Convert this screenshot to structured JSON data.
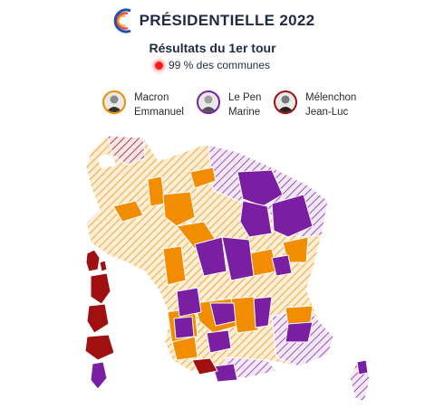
{
  "header": {
    "brand": "PRÉSIDENTIELLE",
    "year": "2022",
    "logo_icon": "tricolor-arc-logo"
  },
  "subtitle": "Résultats du 1er tour",
  "status": {
    "text": "99 % des communes",
    "indicator_color": "#ff1a1a"
  },
  "legend": [
    {
      "first": "Macron",
      "last": "Emmanuel",
      "color": "#f28c00",
      "icon": "macron-avatar"
    },
    {
      "first": "Le Pen",
      "last": "Marine",
      "color": "#7b1fa2",
      "icon": "lepen-avatar"
    },
    {
      "first": "Mélenchon",
      "last": "Jean-Luc",
      "color": "#a01010",
      "icon": "melenchon-avatar"
    }
  ],
  "colors": {
    "macron": "#f28c00",
    "lepen": "#7b1fa2",
    "melenchon": "#a01010",
    "border": "#ffffff"
  }
}
